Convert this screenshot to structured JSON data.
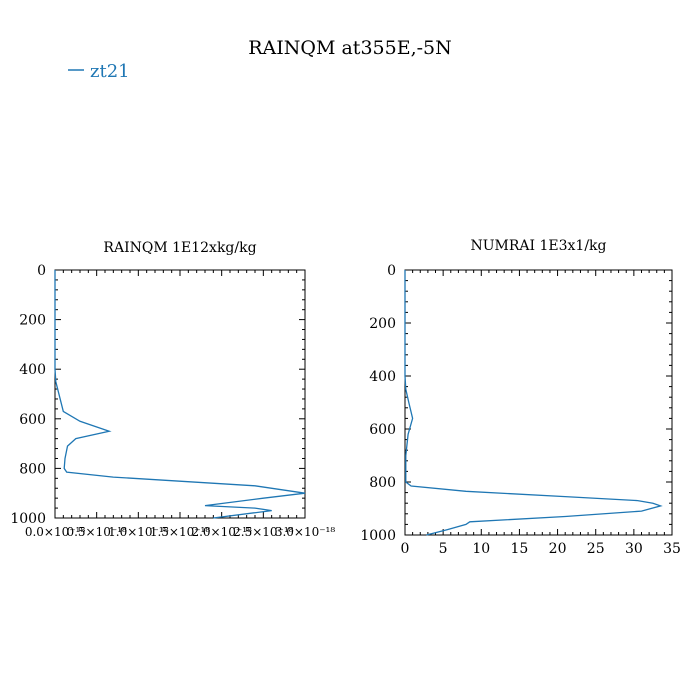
{
  "figure": {
    "title": "RAINQM at355E,-5N",
    "legend_label": "zt21",
    "series_color": "#1f77b4"
  },
  "chart_data": [
    {
      "type": "line",
      "title": "RAINQM  1E12xkg/kg",
      "xlabel": "",
      "ylabel": "",
      "xlim": [
        0,
        3e-18
      ],
      "ylim": [
        1000,
        0
      ],
      "y_inverted": true,
      "grid": false,
      "legend": "top-left",
      "x_ticks": [
        0,
        5e-19,
        1e-18,
        1.5e-18,
        2e-18,
        2.5e-18,
        3e-18
      ],
      "x_tick_labels": [
        "0.0×10⁻¹⁸",
        "0.5×10⁻¹⁸",
        "1.0×10⁻¹⁸",
        "1.5×10⁻¹⁸",
        "2.0×10⁻¹⁸",
        "2.5×10⁻¹⁸",
        "3.0×10⁻¹⁸"
      ],
      "y_ticks": [
        0,
        200,
        400,
        600,
        800,
        1000
      ],
      "y_tick_labels": [
        "0",
        "200",
        "400",
        "600",
        "800",
        "1000"
      ],
      "series": [
        {
          "name": "zt21",
          "x": [
            0,
            0,
            1e-20,
            1e-19,
            3e-19,
            6.5e-19,
            2.5e-19,
            1.5e-19,
            1.2e-19,
            1.1e-19,
            1.4e-19,
            7e-19,
            2.4e-18,
            3e-18,
            2.5e-18,
            1.8e-18,
            2.4e-18,
            2.6e-18,
            1.9e-18
          ],
          "y": [
            0,
            400,
            450,
            570,
            610,
            650,
            680,
            710,
            760,
            800,
            815,
            835,
            870,
            900,
            920,
            950,
            960,
            970,
            1000
          ]
        }
      ]
    },
    {
      "type": "line",
      "title": "NUMRAI  1E3x1/kg",
      "xlabel": "",
      "ylabel": "",
      "xlim": [
        0,
        35
      ],
      "ylim": [
        1000,
        0
      ],
      "y_inverted": true,
      "grid": false,
      "x_ticks": [
        0,
        5,
        10,
        15,
        20,
        25,
        30,
        35
      ],
      "x_tick_labels": [
        "0",
        "5",
        "10",
        "15",
        "20",
        "25",
        "30",
        "35"
      ],
      "y_ticks": [
        0,
        200,
        400,
        600,
        800,
        1000
      ],
      "y_tick_labels": [
        "0",
        "200",
        "400",
        "600",
        "800",
        "1000"
      ],
      "series": [
        {
          "name": "zt21",
          "x": [
            0,
            0,
            0.1,
            0.5,
            1.0,
            0.4,
            0.1,
            0.1,
            0.8,
            8.0,
            21.0,
            30.5,
            32.5,
            33.5,
            31.0,
            21.0,
            8.5,
            8.0,
            5.5,
            2.8
          ],
          "y": [
            0,
            400,
            450,
            500,
            560,
            620,
            700,
            800,
            815,
            835,
            855,
            870,
            880,
            890,
            910,
            930,
            950,
            960,
            980,
            1000
          ]
        }
      ]
    }
  ]
}
